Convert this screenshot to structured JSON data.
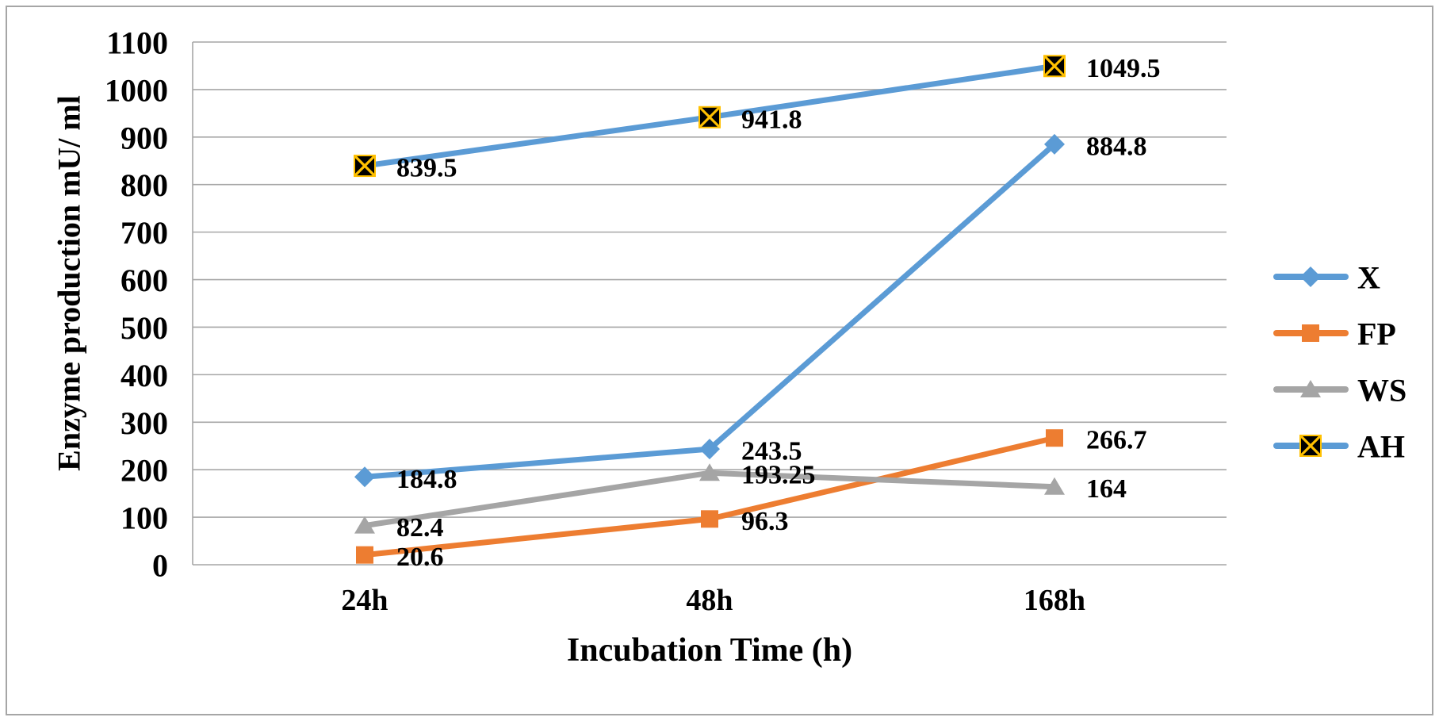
{
  "chart_data": {
    "type": "line",
    "title": "",
    "xlabel": "Incubation Time (h)",
    "ylabel": "Enzyme production mU/ ml",
    "categories": [
      "24h",
      "48h",
      "168h"
    ],
    "ylim": [
      0,
      1100
    ],
    "y_tick_step": 100,
    "y_ticks": [
      0,
      100,
      200,
      300,
      400,
      500,
      600,
      700,
      800,
      900,
      1000,
      1100
    ],
    "grid": true,
    "legend_position": "right",
    "series": [
      {
        "name": "X",
        "values": [
          184.8,
          243.5,
          884.8
        ],
        "labels": [
          "184.8",
          "243.5",
          "884.8"
        ],
        "color": "#5B9BD5",
        "marker": "diamond"
      },
      {
        "name": "FP",
        "values": [
          20.6,
          96.3,
          266.7
        ],
        "labels": [
          "20.6",
          "96.3",
          "266.7"
        ],
        "color": "#ED7D31",
        "marker": "square"
      },
      {
        "name": "WS",
        "values": [
          82.4,
          193.25,
          164
        ],
        "labels": [
          "82.4",
          "193.25",
          "164"
        ],
        "color": "#A5A5A5",
        "marker": "triangle"
      },
      {
        "name": "AH",
        "values": [
          839.5,
          941.8,
          1049.5
        ],
        "labels": [
          "839.5",
          "941.8",
          "1049.5"
        ],
        "color": "#5B9BD5",
        "marker": "x-square",
        "marker_fill": "#000000",
        "marker_accent": "#FFC000"
      }
    ],
    "colors": {
      "gridline": "#A6A6A6",
      "axis_line": "#A6A6A6",
      "frame_border": "#A6A6A6",
      "label_text": "#000000"
    }
  }
}
